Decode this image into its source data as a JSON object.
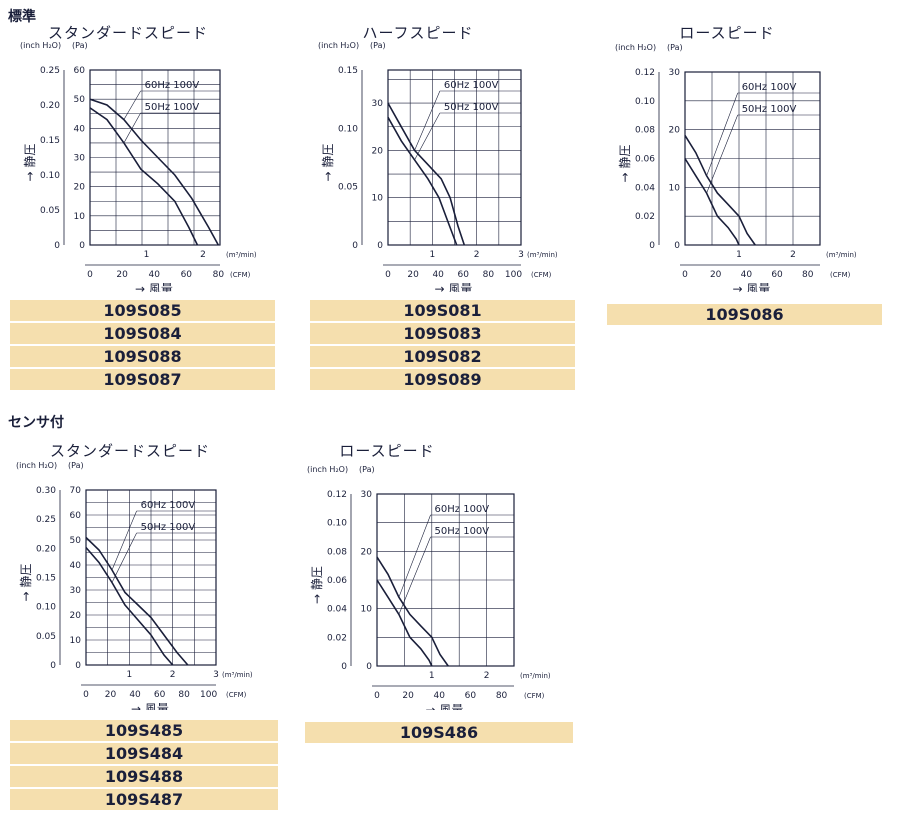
{
  "sections": {
    "standard": "標準",
    "sensor": "センサ付"
  },
  "units": {
    "inch": "(inch H₂O)",
    "pa": "(Pa)",
    "m3": "(m³/min)",
    "cfm": "(CFM)",
    "ylabel": "→ 静圧",
    "xlabel": "→ 風量"
  },
  "chart_data": [
    {
      "type": "line",
      "title": "スタンダードスピード",
      "xlabel": "風量",
      "ylabel": "静圧",
      "x_ticks_m3": [
        "1",
        "2"
      ],
      "x_max_m3": 2.3,
      "x_ticks_cfm": [
        "0",
        "20",
        "40",
        "60",
        "80"
      ],
      "cfm_max": 81,
      "y_ticks_pa": [
        "0",
        "10",
        "20",
        "30",
        "40",
        "50",
        "60"
      ],
      "y_max_pa": 60,
      "y_ticks_inch": [
        "0",
        "0.05",
        "0.10",
        "0.15",
        "0.20",
        "0.25"
      ],
      "series": [
        {
          "name": "60Hz 100V",
          "x": [
            0,
            0.3,
            0.6,
            0.9,
            1.2,
            1.5,
            1.8,
            2.1,
            2.27
          ],
          "y": [
            50,
            48,
            43,
            36,
            30,
            24,
            16,
            6,
            0
          ]
        },
        {
          "name": "50Hz 100V",
          "x": [
            0,
            0.3,
            0.6,
            0.9,
            1.2,
            1.5,
            1.75,
            1.9
          ],
          "y": [
            47,
            43,
            35,
            26,
            21,
            15,
            6,
            0
          ]
        }
      ],
      "models": [
        "109S085",
        "109S084",
        "109S088",
        "109S087"
      ]
    },
    {
      "type": "line",
      "title": "ハーフスピード",
      "xlabel": "風量",
      "ylabel": "静圧",
      "x_ticks_m3": [
        "1",
        "2",
        "3"
      ],
      "x_max_m3": 3.0,
      "x_ticks_cfm": [
        "0",
        "20",
        "40",
        "60",
        "80",
        "100"
      ],
      "cfm_max": 106,
      "y_ticks_pa": [
        "0",
        "10",
        "20",
        "30"
      ],
      "y_max_pa": 37,
      "y_ticks_inch": [
        "0",
        "0.05",
        "0.10",
        "0.15"
      ],
      "series": [
        {
          "name": "60Hz 100V",
          "x": [
            0,
            0.3,
            0.6,
            0.9,
            1.2,
            1.4,
            1.58,
            1.72
          ],
          "y": [
            30,
            25,
            20,
            17,
            14,
            10,
            4,
            0
          ]
        },
        {
          "name": "50Hz 100V",
          "x": [
            0,
            0.3,
            0.6,
            0.9,
            1.15,
            1.35,
            1.55
          ],
          "y": [
            27,
            22,
            18,
            14,
            10,
            5,
            0
          ]
        }
      ],
      "models": [
        "109S081",
        "109S083",
        "109S082",
        "109S089"
      ]
    },
    {
      "type": "line",
      "title": "ロースピード",
      "xlabel": "風量",
      "ylabel": "静圧",
      "x_ticks_m3": [
        "1",
        "2"
      ],
      "x_max_m3": 2.5,
      "x_ticks_cfm": [
        "0",
        "20",
        "40",
        "60",
        "80"
      ],
      "cfm_max": 88,
      "y_ticks_pa": [
        "0",
        "10",
        "20",
        "30"
      ],
      "y_max_pa": 30,
      "y_ticks_inch": [
        "0",
        "0.02",
        "0.04",
        "0.06",
        "0.08",
        "0.10",
        "0.12"
      ],
      "series": [
        {
          "name": "60Hz 100V",
          "x": [
            0,
            0.2,
            0.4,
            0.6,
            0.8,
            1.0,
            1.15,
            1.3
          ],
          "y": [
            19,
            16,
            12,
            9,
            7,
            5,
            2,
            0
          ]
        },
        {
          "name": "50Hz 100V",
          "x": [
            0,
            0.2,
            0.4,
            0.6,
            0.8,
            0.95,
            1.0
          ],
          "y": [
            15,
            12,
            9,
            5,
            3,
            1,
            0
          ]
        }
      ],
      "models": [
        "109S086"
      ]
    },
    {
      "type": "line",
      "title": "スタンダードスピード",
      "xlabel": "風量",
      "ylabel": "静圧",
      "x_ticks_m3": [
        "1",
        "2",
        "3"
      ],
      "x_max_m3": 3.0,
      "x_ticks_cfm": [
        "0",
        "20",
        "40",
        "60",
        "80",
        "100"
      ],
      "cfm_max": 106,
      "y_ticks_pa": [
        "0",
        "10",
        "20",
        "30",
        "40",
        "50",
        "60",
        "70"
      ],
      "y_max_pa": 70,
      "y_ticks_inch": [
        "0",
        "0.05",
        "0.10",
        "0.15",
        "0.20",
        "0.25",
        "0.30"
      ],
      "series": [
        {
          "name": "60Hz 100V",
          "x": [
            0,
            0.3,
            0.6,
            0.9,
            1.2,
            1.5,
            1.8,
            2.1,
            2.35
          ],
          "y": [
            51,
            46,
            38,
            29,
            24,
            19,
            12,
            5,
            0
          ]
        },
        {
          "name": "50Hz 100V",
          "x": [
            0,
            0.3,
            0.6,
            0.9,
            1.2,
            1.5,
            1.8,
            2.0
          ],
          "y": [
            47,
            41,
            33,
            24,
            18,
            12,
            4,
            0
          ]
        }
      ],
      "models": [
        "109S485",
        "109S484",
        "109S488",
        "109S487"
      ]
    },
    {
      "type": "line",
      "title": "ロースピード",
      "xlabel": "風量",
      "ylabel": "静圧",
      "x_ticks_m3": [
        "1",
        "2"
      ],
      "x_max_m3": 2.5,
      "x_ticks_cfm": [
        "0",
        "20",
        "40",
        "60",
        "80"
      ],
      "cfm_max": 88,
      "y_ticks_pa": [
        "0",
        "10",
        "20",
        "30"
      ],
      "y_max_pa": 30,
      "y_ticks_inch": [
        "0",
        "0.02",
        "0.04",
        "0.06",
        "0.08",
        "0.10",
        "0.12"
      ],
      "series": [
        {
          "name": "60Hz 100V",
          "x": [
            0,
            0.2,
            0.4,
            0.6,
            0.8,
            1.0,
            1.15,
            1.3
          ],
          "y": [
            19,
            16,
            12,
            9,
            7,
            5,
            2,
            0
          ]
        },
        {
          "name": "50Hz 100V",
          "x": [
            0,
            0.2,
            0.4,
            0.6,
            0.8,
            0.95,
            1.0
          ],
          "y": [
            15,
            12,
            9,
            5,
            3,
            1,
            0
          ]
        }
      ],
      "models": [
        "109S486"
      ]
    }
  ],
  "colors": {
    "ink": "#1a1f3a",
    "band": "#f5dfae"
  }
}
